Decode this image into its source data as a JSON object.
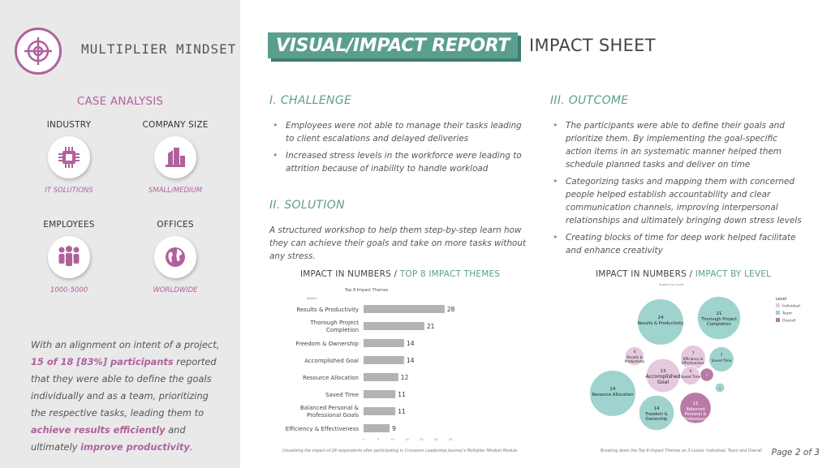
{
  "sidebar": {
    "brand": "MULTIPLIER MINDSET",
    "case_title": "CASE ANALYSIS",
    "tiles": [
      {
        "label": "INDUSTRY",
        "value": "IT SOLUTIONS",
        "icon": "chip-icon"
      },
      {
        "label": "COMPANY SIZE",
        "value": "SMALL/MEDIUM",
        "icon": "building-icon"
      },
      {
        "label": "EMPLOYEES",
        "value": "1000-5000",
        "icon": "people-icon"
      },
      {
        "label": "OFFICES",
        "value": "WORLDWIDE",
        "icon": "globe-icon"
      }
    ],
    "summary": {
      "p1": "With an alignment on intent of a project, ",
      "b1": "15 of 18 [83%] participants",
      "p2": " reported that they were able to define the goals individually and as a team, prioritizing the respective tasks, leading them to ",
      "b2": "achieve results efficiently",
      "p3": " and ultimately ",
      "b3": "improve productivity",
      "p4": "."
    }
  },
  "header": {
    "title": "VISUAL/IMPACT REPORT",
    "subtitle": "IMPACT SHEET"
  },
  "challenge": {
    "title": "I. CHALLENGE",
    "bullets": [
      "Employees were not able to manage their tasks leading to client escalations and delayed deliveries",
      "Increased stress levels in the workforce were leading to attrition because of inability to handle workload"
    ]
  },
  "solution": {
    "title": "II. SOLUTION",
    "text": "A structured workshop to help them step-by-step learn how they can achieve their goals and take on more tasks without any stress."
  },
  "outcome": {
    "title": "III. OUTCOME",
    "bullets": [
      "The participants were able to define their goals and prioritize them. By implementing the goal-specific action items  in an systematic  manner helped them schedule planned tasks and deliver on time",
      "Categorizing tasks and mapping them with concerned people helped establish accountability and clear communication channels, improving interpersonal relationships and ultimately bringing down stress levels",
      "Creating blocks of time for deep work helped facilitate and enhance creativity"
    ]
  },
  "chart1_header": {
    "prefix": "IMPACT IN NUMBERS / ",
    "accent": "TOP 8 IMPACT THEMES"
  },
  "chart2_header": {
    "prefix": "IMPACT IN NUMBERS / ",
    "accent": "IMPACT BY LEVEL"
  },
  "captions": {
    "chart1": "Visualizing the impact of 28 respondents after participating in Crossover Leadership Journey's Multiplier Mindset Module",
    "chart2": "Breaking down the Top 8 Impact Themes on 3 Levels: Individual, Team and Overall"
  },
  "page": "Page 2 of 3",
  "colors": {
    "accent_pink": "#b0619c",
    "accent_teal": "#5a9e8f",
    "bar": "#b3b3b3",
    "bubble_team": "#9fd3cd",
    "bubble_individual": "#e6c9de",
    "bubble_overall": "#b97aa8"
  },
  "chart_data": [
    {
      "type": "bar",
      "title": "Top 8 Impact Themes",
      "legend_label": "Impact",
      "categories": [
        "Results & Productivity",
        "Thorough Project Completion",
        "Freedom & Ownership",
        "Accomplished Goal",
        "Resource Allocation",
        "Saved Time",
        "Balanced Personal & Professional Goals",
        "Efficiency & Effectiveness"
      ],
      "values": [
        28,
        21,
        14,
        14,
        12,
        11,
        11,
        9
      ],
      "xlim": [
        0,
        30
      ],
      "xticks": [
        "0",
        "5",
        "10",
        "15",
        "20",
        "25",
        "30"
      ]
    },
    {
      "type": "bubble",
      "title": "Impact by Level",
      "legend_title": "Level",
      "legend": [
        {
          "name": "Individual",
          "color": "#e6c9de"
        },
        {
          "name": "Team",
          "color": "#9fd3cd"
        },
        {
          "name": "Overall",
          "color": "#b97aa8"
        }
      ],
      "bubbles": [
        {
          "value": 24,
          "label": "Results & Productivity",
          "level": "Team"
        },
        {
          "value": 21,
          "label": "Thorough Project Completion",
          "level": "Team"
        },
        {
          "value": 24,
          "label": "Resource Allocation",
          "level": "Team"
        },
        {
          "value": 14,
          "label": "Freedom & Ownership",
          "level": "Team"
        },
        {
          "value": 13,
          "label": "Accomplished Goal",
          "level": "Individual"
        },
        {
          "value": 11,
          "label": "Balanced Personal & Professional Goals",
          "level": "Overall"
        },
        {
          "value": 7,
          "label": "Efficiency & Effectiveness",
          "level": "Individual"
        },
        {
          "value": 7,
          "label": "Saved Time",
          "level": "Team"
        },
        {
          "value": 4,
          "label": "Results & Productivity",
          "level": "Individual"
        },
        {
          "value": 4,
          "label": "Saved Time",
          "level": "Individual"
        },
        {
          "value": 2,
          "label": "",
          "level": "Overall"
        },
        {
          "value": 1,
          "label": "",
          "level": "Team"
        }
      ]
    }
  ]
}
